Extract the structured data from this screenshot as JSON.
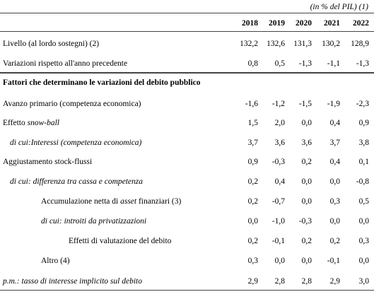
{
  "note": "(in % del PIL) (1)",
  "header": {
    "years": [
      "2018",
      "2019",
      "2020",
      "2021",
      "2022"
    ]
  },
  "rows": [
    {
      "label": "Livello (al lordo sostegni) (2)",
      "values": [
        "132,2",
        "132,6",
        "131,3",
        "130,2",
        "128,9"
      ]
    },
    {
      "label": "Variazioni rispetto all'anno precedente",
      "values": [
        "0,8",
        "0,5",
        "-1,3",
        "-1,1",
        "-1,3"
      ]
    },
    {
      "label": "Fattori che determinano le variazioni del debito pubblico"
    },
    {
      "label": "Avanzo primario (competenza economica)",
      "values": [
        "-1,6",
        "-1,2",
        "-1,5",
        "-1,9",
        "-2,3"
      ]
    },
    {
      "label": [
        "Effetto ",
        "snow-ball"
      ],
      "values": [
        "1,5",
        "2,0",
        "0,0",
        "0,4",
        "0,9"
      ]
    },
    {
      "label": "di cui:Interessi (competenza economica)",
      "values": [
        "3,7",
        "3,6",
        "3,6",
        "3,7",
        "3,8"
      ]
    },
    {
      "label": "Aggiustamento stock-flussi",
      "values": [
        "0,9",
        "-0,3",
        "0,2",
        "0,4",
        "0,1"
      ]
    },
    {
      "label": "di cui: differenza tra cassa e competenza",
      "values": [
        "0,2",
        "0,4",
        "0,0",
        "0,0",
        "-0,8"
      ]
    },
    {
      "label": [
        "Accumulazione netta di ",
        "asset",
        " finanziari (3)"
      ],
      "values": [
        "0,2",
        "-0,7",
        "0,0",
        "0,3",
        "0,5"
      ]
    },
    {
      "label": "di cui: introiti da privatizzazioni",
      "values": [
        "0,0",
        "-1,0",
        "-0,3",
        "0,0",
        "0,0"
      ]
    },
    {
      "label": "Effetti di valutazione del debito",
      "values": [
        "0,2",
        "-0,1",
        "0,2",
        "0,2",
        "0,3"
      ]
    },
    {
      "label": "Altro (4)",
      "values": [
        "0,3",
        "0,0",
        "0,0",
        "-0,1",
        "0,0"
      ]
    },
    {
      "label": "p.m.: tasso di interesse implicito sul debito",
      "values": [
        "2,9",
        "2,8",
        "2,8",
        "2,9",
        "3,0"
      ]
    }
  ]
}
